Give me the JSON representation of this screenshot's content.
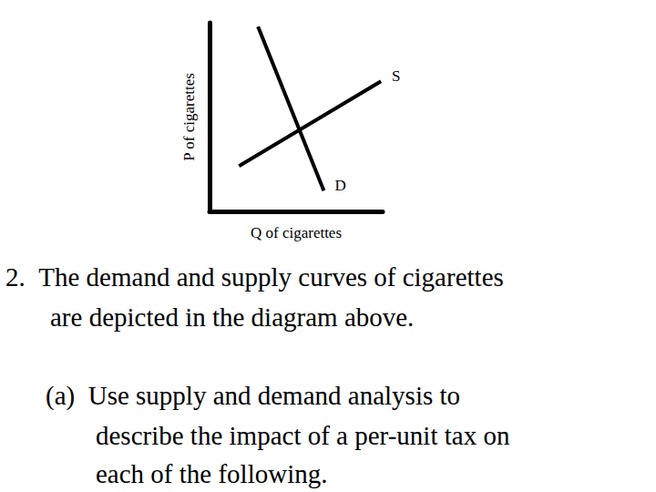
{
  "chart_data": {
    "type": "line",
    "x_label": "Q of cigarettes",
    "y_label": "P of cigarettes",
    "xlim": [
      0,
      10
    ],
    "ylim": [
      0,
      10
    ],
    "tick_labels": false,
    "grid": false,
    "series": [
      {
        "name": "D",
        "color": "#000000",
        "x": [
          2.8,
          6.6
        ],
        "values": [
          9.8,
          1.1
        ]
      },
      {
        "name": "S",
        "color": "#000000",
        "x": [
          1.7,
          9.9
        ],
        "values": [
          2.4,
          6.9
        ]
      }
    ]
  },
  "question": {
    "number": "2.",
    "lines": [
      "The demand and supply curves of cigarettes",
      "are depicted in the diagram above."
    ],
    "part": {
      "label": "(a)",
      "lines": [
        "Use supply and demand analysis to",
        "describe the impact of a per-unit tax on",
        "each of the following."
      ]
    }
  }
}
